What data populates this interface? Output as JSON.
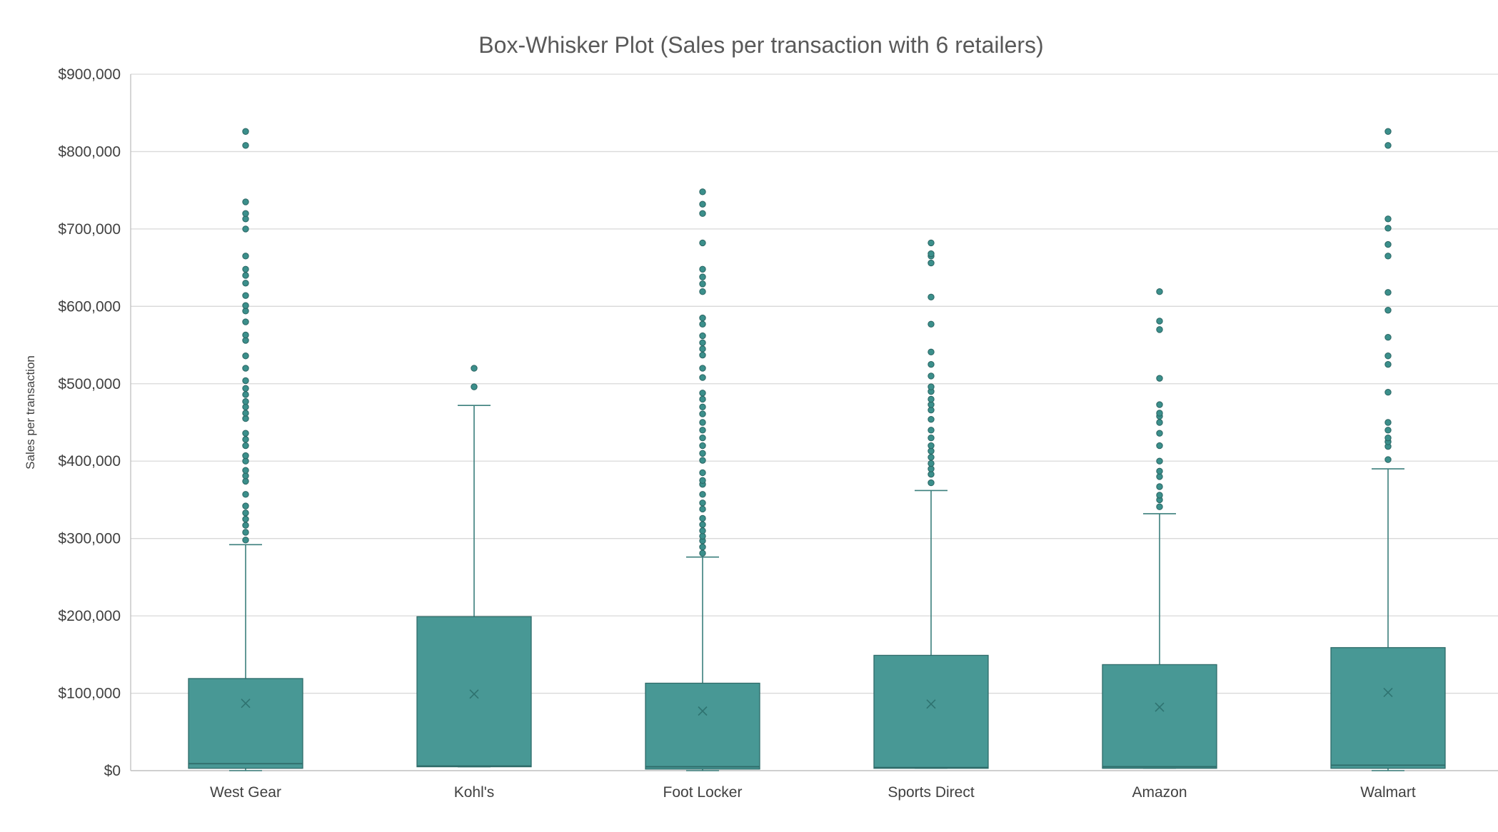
{
  "colors": {
    "box_fill": "#489895",
    "box_stroke": "#2e6b69",
    "whisker": "#3b7f7c",
    "outlier": "#3b8f8b",
    "outlier_stroke": "#2a6462",
    "mean_marker": "#2f7370",
    "grid": "#d9d9d9",
    "axis": "#bfbfbf",
    "text": "#404040",
    "title": "#595959"
  },
  "chart_data": {
    "type": "box",
    "title": "Box-Whisker Plot (Sales per transaction with 6 retailers)",
    "xlabel": "",
    "ylabel": "Sales per transaction",
    "ylim": [
      0,
      900000
    ],
    "yticks": [
      0,
      100000,
      200000,
      300000,
      400000,
      500000,
      600000,
      700000,
      800000,
      900000
    ],
    "ytick_labels": [
      "$0",
      "$100,000",
      "$200,000",
      "$300,000",
      "$400,000",
      "$500,000",
      "$600,000",
      "$700,000",
      "$800,000",
      "$900,000"
    ],
    "grid": true,
    "categories": [
      "West Gear",
      "Kohl's",
      "Foot Locker",
      "Sports Direct",
      "Amazon",
      "Walmart"
    ],
    "boxes": [
      {
        "name": "West Gear",
        "min": 0,
        "q1": 3000,
        "median": 9000,
        "q3": 119000,
        "max": 292000,
        "mean": 87000,
        "outliers": [
          298000,
          308000,
          317000,
          325000,
          333000,
          342000,
          357000,
          374000,
          381000,
          388000,
          400000,
          407000,
          420000,
          428000,
          436000,
          455000,
          462000,
          470000,
          477000,
          486000,
          494000,
          504000,
          520000,
          536000,
          556000,
          563000,
          580000,
          594000,
          601000,
          614000,
          630000,
          640000,
          648000,
          665000,
          700000,
          713000,
          720000,
          735000,
          808000,
          826000
        ]
      },
      {
        "name": "Kohl's",
        "min": 5000,
        "q1": 5000,
        "median": 6000,
        "q3": 199000,
        "max": 472000,
        "mean": 99000,
        "outliers": [
          496000,
          520000
        ]
      },
      {
        "name": "Foot Locker",
        "min": 0,
        "q1": 2000,
        "median": 5000,
        "q3": 113000,
        "max": 276000,
        "mean": 77000,
        "outliers": [
          281000,
          289000,
          297000,
          303000,
          310000,
          318000,
          326000,
          338000,
          346000,
          357000,
          370000,
          375000,
          385000,
          401000,
          410000,
          420000,
          430000,
          440000,
          450000,
          461000,
          470000,
          480000,
          488000,
          508000,
          520000,
          537000,
          545000,
          553000,
          562000,
          577000,
          585000,
          619000,
          629000,
          638000,
          648000,
          682000,
          720000,
          732000,
          748000
        ]
      },
      {
        "name": "Sports Direct",
        "min": 3000,
        "q1": 3000,
        "median": 4000,
        "q3": 149000,
        "max": 362000,
        "mean": 86000,
        "outliers": [
          372000,
          383000,
          390000,
          397000,
          405000,
          413000,
          420000,
          430000,
          440000,
          454000,
          466000,
          473000,
          480000,
          490000,
          496000,
          510000,
          525000,
          541000,
          577000,
          612000,
          656000,
          665000,
          668000,
          682000
        ]
      },
      {
        "name": "Amazon",
        "min": 3000,
        "q1": 3000,
        "median": 5000,
        "q3": 137000,
        "max": 332000,
        "mean": 82000,
        "outliers": [
          341000,
          350000,
          356000,
          367000,
          380000,
          387000,
          400000,
          420000,
          436000,
          450000,
          458000,
          462000,
          473000,
          507000,
          570000,
          581000,
          619000
        ]
      },
      {
        "name": "Walmart",
        "min": 0,
        "q1": 3000,
        "median": 7000,
        "q3": 159000,
        "max": 390000,
        "mean": 101000,
        "outliers": [
          402000,
          419000,
          425000,
          430000,
          440000,
          450000,
          489000,
          525000,
          536000,
          560000,
          595000,
          618000,
          665000,
          680000,
          701000,
          713000,
          808000,
          826000
        ]
      }
    ]
  }
}
